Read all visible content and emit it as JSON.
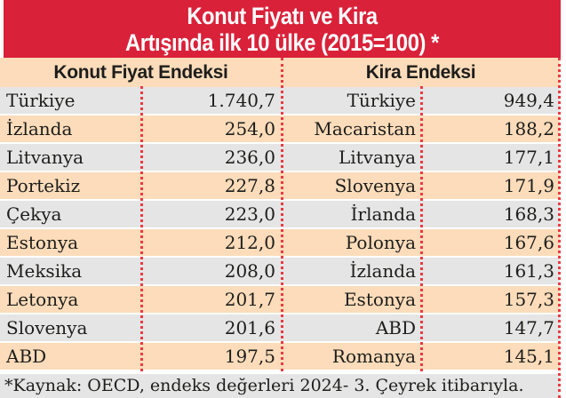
{
  "colors": {
    "title_band_red": "#d92139",
    "dotted_divider_red": "#ea3a42",
    "row_peach": "#fcdcba",
    "row_gray": "#e6e5e5",
    "text_black": "#1d1d1b",
    "title_text": "#ffffff"
  },
  "title": {
    "line1": "Konut Fiyatı ve Kira",
    "line2": "Artışında ilk 10 ülke (2015=100) *"
  },
  "table": {
    "left": {
      "header": "Konut Fiyat Endeksi",
      "rows": [
        {
          "country": "Türkiye",
          "value": "1.740,7"
        },
        {
          "country": "İzlanda",
          "value": "254,0"
        },
        {
          "country": "Litvanya",
          "value": "236,0"
        },
        {
          "country": "Portekiz",
          "value": "227,8"
        },
        {
          "country": "Çekya",
          "value": "223,0"
        },
        {
          "country": "Estonya",
          "value": "212,0"
        },
        {
          "country": "Meksika",
          "value": "208,0"
        },
        {
          "country": "Letonya",
          "value": "201,7"
        },
        {
          "country": "Slovenya",
          "value": "201,6"
        },
        {
          "country": "ABD",
          "value": "197,5"
        }
      ]
    },
    "right": {
      "header": "Kira Endeksi",
      "rows": [
        {
          "country": "Türkiye",
          "value": "949,4"
        },
        {
          "country": "Macaristan",
          "value": "188,2"
        },
        {
          "country": "Litvanya",
          "value": "177,1"
        },
        {
          "country": "Slovenya",
          "value": "171,9"
        },
        {
          "country": "İrlanda",
          "value": "168,3"
        },
        {
          "country": "Polonya",
          "value": "167,6"
        },
        {
          "country": "İzlanda",
          "value": "161,3"
        },
        {
          "country": "Estonya",
          "value": "157,3"
        },
        {
          "country": "ABD",
          "value": "147,7"
        },
        {
          "country": "Romanya",
          "value": "145,1"
        }
      ]
    }
  },
  "footnote": "*Kaynak: OECD, endeks değerleri 2024- 3. Çeyrek itibarıyla.",
  "chart_data": {
    "type": "table",
    "title": "Konut Fiyatı ve Kira Artışında ilk 10 ülke (2015=100) *",
    "series": [
      {
        "name": "Konut Fiyat Endeksi",
        "categories": [
          "Türkiye",
          "İzlanda",
          "Litvanya",
          "Portekiz",
          "Çekya",
          "Estonya",
          "Meksika",
          "Letonya",
          "Slovenya",
          "ABD"
        ],
        "values": [
          1740.7,
          254.0,
          236.0,
          227.8,
          223.0,
          212.0,
          208.0,
          201.7,
          201.6,
          197.5
        ]
      },
      {
        "name": "Kira Endeksi",
        "categories": [
          "Türkiye",
          "Macaristan",
          "Litvanya",
          "Slovenya",
          "İrlanda",
          "Polonya",
          "İzlanda",
          "Estonya",
          "ABD",
          "Romanya"
        ],
        "values": [
          949.4,
          188.2,
          177.1,
          171.9,
          168.3,
          167.6,
          161.3,
          157.3,
          147.7,
          145.1
        ]
      }
    ],
    "base_year_note": "2015=100",
    "footnote": "*Kaynak: OECD, endeks değerleri 2024- 3. Çeyrek itibarıyla."
  }
}
